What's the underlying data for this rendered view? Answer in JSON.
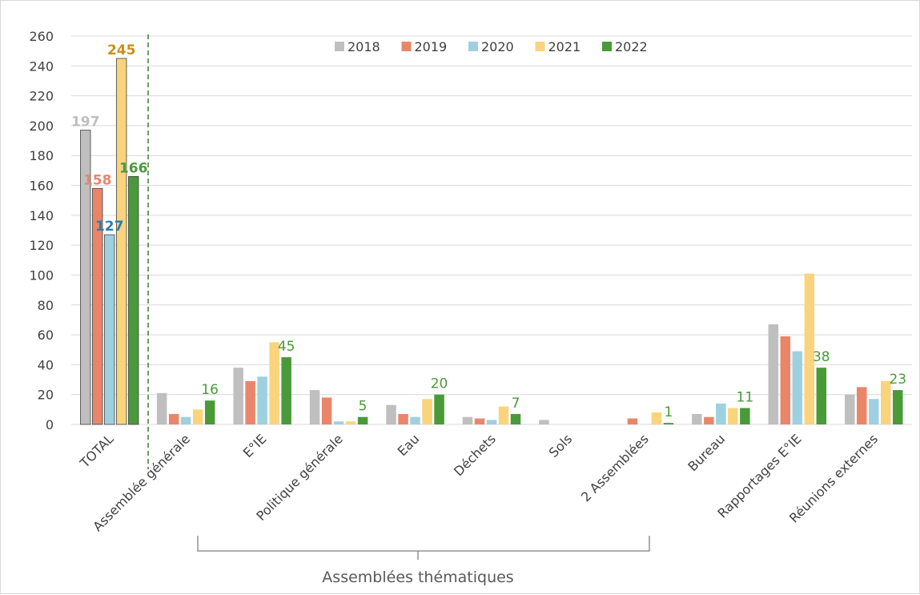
{
  "chart_data": {
    "type": "bar",
    "categories": [
      "TOTAL",
      "Assemblée générale",
      "E°IE",
      "Politique générale",
      "Eau",
      "Déchets",
      "Sols",
      "2 Assemblées",
      "Bureau",
      "Rapportages E°IE",
      "Réunions externes"
    ],
    "series": [
      {
        "name": "2018",
        "color": "#bfbfbf",
        "values": [
          197,
          21,
          38,
          23,
          13,
          5,
          3,
          0,
          7,
          67,
          20
        ]
      },
      {
        "name": "2019",
        "color": "#e9866a",
        "values": [
          158,
          7,
          29,
          18,
          7,
          4,
          0,
          4,
          5,
          59,
          25
        ]
      },
      {
        "name": "2020",
        "color": "#9ed0e0",
        "values": [
          127,
          5,
          32,
          2,
          5,
          3,
          0,
          0,
          14,
          49,
          17
        ]
      },
      {
        "name": "2021",
        "color": "#f9d47c",
        "values": [
          245,
          10,
          55,
          2,
          17,
          12,
          0,
          8,
          11,
          101,
          29
        ]
      },
      {
        "name": "2022",
        "color": "#4a9a3a",
        "values": [
          166,
          16,
          45,
          5,
          20,
          7,
          0,
          1,
          11,
          38,
          23
        ]
      }
    ],
    "ylim": [
      0,
      260
    ],
    "yticks": [
      "0",
      "20",
      "40",
      "60",
      "80",
      "100",
      "120",
      "140",
      "160",
      "180",
      "200",
      "220",
      "240",
      "260"
    ],
    "grid": true,
    "legend_position": "top-center",
    "data_labels": {
      "total": [
        {
          "series": 0,
          "text": "197",
          "color": "#bfbfbf"
        },
        {
          "series": 1,
          "text": "158",
          "color": "#e9866a"
        },
        {
          "series": 2,
          "text": "127",
          "color": "#2e7fa5"
        },
        {
          "series": 3,
          "text": "245",
          "color": "#c8901a"
        },
        {
          "series": 4,
          "text": "166",
          "color": "#4a9a3a"
        }
      ],
      "series_2022": [
        "16",
        "45",
        "5",
        "20",
        "7",
        "1",
        "11",
        "38",
        "23"
      ],
      "series_2022_color": "#4a9a3a"
    },
    "bracket_label": "Assemblées thématiques"
  }
}
